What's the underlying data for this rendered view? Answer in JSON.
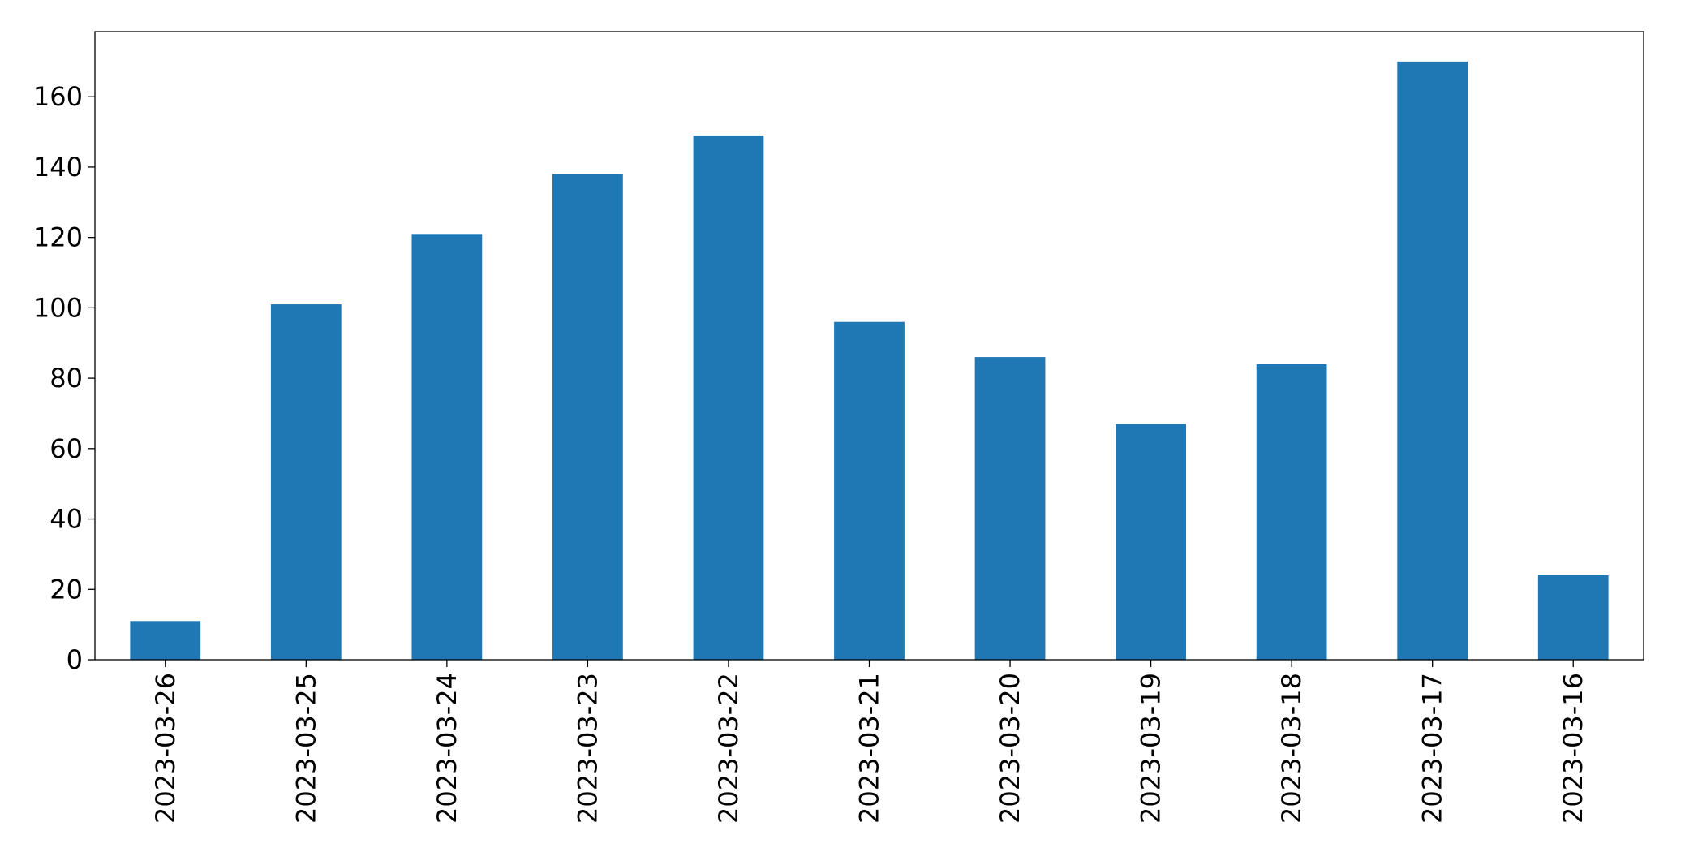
{
  "chart_data": {
    "type": "bar",
    "categories": [
      "2023-03-26",
      "2023-03-25",
      "2023-03-24",
      "2023-03-23",
      "2023-03-22",
      "2023-03-21",
      "2023-03-20",
      "2023-03-19",
      "2023-03-18",
      "2023-03-17",
      "2023-03-16"
    ],
    "values": [
      11,
      101,
      121,
      138,
      149,
      96,
      86,
      67,
      84,
      170,
      24
    ],
    "color": "#1f77b4",
    "ylim": [
      0,
      178.5
    ],
    "yticks": [
      0,
      20,
      40,
      60,
      80,
      100,
      120,
      140,
      160
    ],
    "grid": false
  }
}
